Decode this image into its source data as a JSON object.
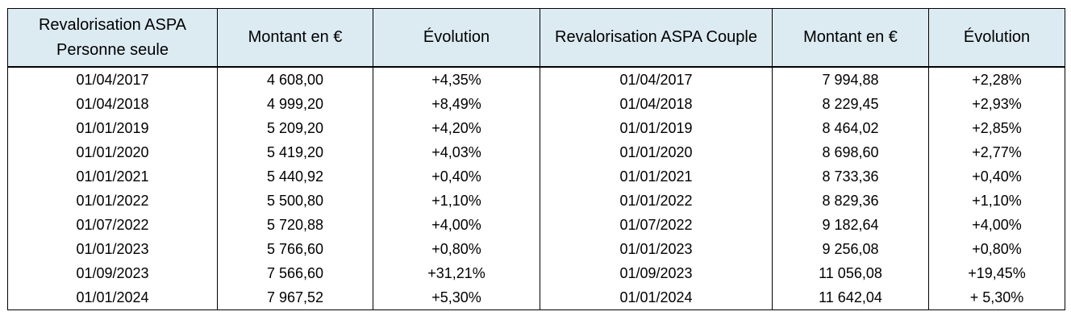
{
  "headers": {
    "single_line1": "Revalorisation ASPA",
    "single_line2": "Personne seule",
    "single_amount": "Montant en €",
    "single_evolution": "Évolution",
    "couple": "Revalorisation ASPA Couple",
    "couple_amount": "Montant en €",
    "couple_evolution": "Évolution"
  },
  "rows": [
    {
      "date_single": "01/04/2017",
      "amount_single": "4 608,00",
      "evo_single": "+4,35%",
      "date_couple": "01/04/2017",
      "amount_couple": "7 994,88",
      "evo_couple": "+2,28%"
    },
    {
      "date_single": "01/04/2018",
      "amount_single": "4 999,20",
      "evo_single": "+8,49%",
      "date_couple": "01/04/2018",
      "amount_couple": "8 229,45",
      "evo_couple": "+2,93%"
    },
    {
      "date_single": "01/01/2019",
      "amount_single": "5 209,20",
      "evo_single": "+4,20%",
      "date_couple": "01/01/2019",
      "amount_couple": "8 464,02",
      "evo_couple": "+2,85%"
    },
    {
      "date_single": "01/01/2020",
      "amount_single": "5 419,20",
      "evo_single": "+4,03%",
      "date_couple": "01/01/2020",
      "amount_couple": "8 698,60",
      "evo_couple": "+2,77%"
    },
    {
      "date_single": "01/01/2021",
      "amount_single": "5 440,92",
      "evo_single": "+0,40%",
      "date_couple": "01/01/2021",
      "amount_couple": "8 733,36",
      "evo_couple": "+0,40%"
    },
    {
      "date_single": "01/01/2022",
      "amount_single": "5 500,80",
      "evo_single": "+1,10%",
      "date_couple": "01/01/2022",
      "amount_couple": "8 829,36",
      "evo_couple": "+1,10%"
    },
    {
      "date_single": "01/07/2022",
      "amount_single": "5 720,88",
      "evo_single": "+4,00%",
      "date_couple": "01/07/2022",
      "amount_couple": "9 182,64",
      "evo_couple": "+4,00%"
    },
    {
      "date_single": "01/01/2023",
      "amount_single": "5 766,60",
      "evo_single": "+0,80%",
      "date_couple": "01/01/2023",
      "amount_couple": "9 256,08",
      "evo_couple": "+0,80%"
    },
    {
      "date_single": "01/09/2023",
      "amount_single": "7 566,60",
      "evo_single": "+31,21%",
      "date_couple": "01/09/2023",
      "amount_couple": "11 056,08",
      "evo_couple": "+19,45%"
    },
    {
      "date_single": "01/01/2024",
      "amount_single": "7 967,52",
      "evo_single": "+5,30%",
      "date_couple": "01/01/2024",
      "amount_couple": "11 642,04",
      "evo_couple": "+ 5,30%"
    }
  ]
}
